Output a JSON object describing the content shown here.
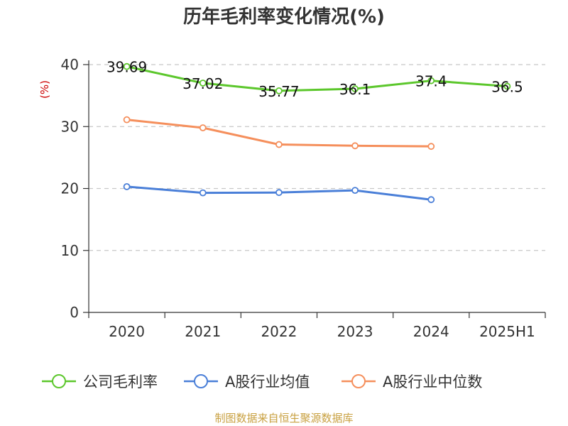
{
  "chart_data": {
    "type": "line",
    "title": "历年毛利率变化情况(%)",
    "ylabel": "(%)",
    "xlabel": "",
    "categories": [
      "2020",
      "2021",
      "2022",
      "2023",
      "2024",
      "2025H1"
    ],
    "ylim": [
      0,
      40
    ],
    "yticks": [
      0,
      10,
      20,
      30,
      40
    ],
    "grid": true,
    "legend_position": "bottom",
    "series": [
      {
        "name": "公司毛利率",
        "color": "#5cc72c",
        "values": [
          39.69,
          37.02,
          35.77,
          36.1,
          37.4,
          36.5
        ],
        "labels": [
          "39.69",
          "37.02",
          "35.77",
          "36.1",
          "37.4",
          "36.5"
        ]
      },
      {
        "name": "A股行业均值",
        "color": "#4a7fd8",
        "values": [
          20.3,
          19.3,
          19.35,
          19.7,
          18.2,
          null
        ]
      },
      {
        "name": "A股行业中位数",
        "color": "#f58f5c",
        "values": [
          31.1,
          29.8,
          27.1,
          26.9,
          26.8,
          null
        ]
      }
    ]
  },
  "source": "制图数据来自恒生聚源数据库"
}
